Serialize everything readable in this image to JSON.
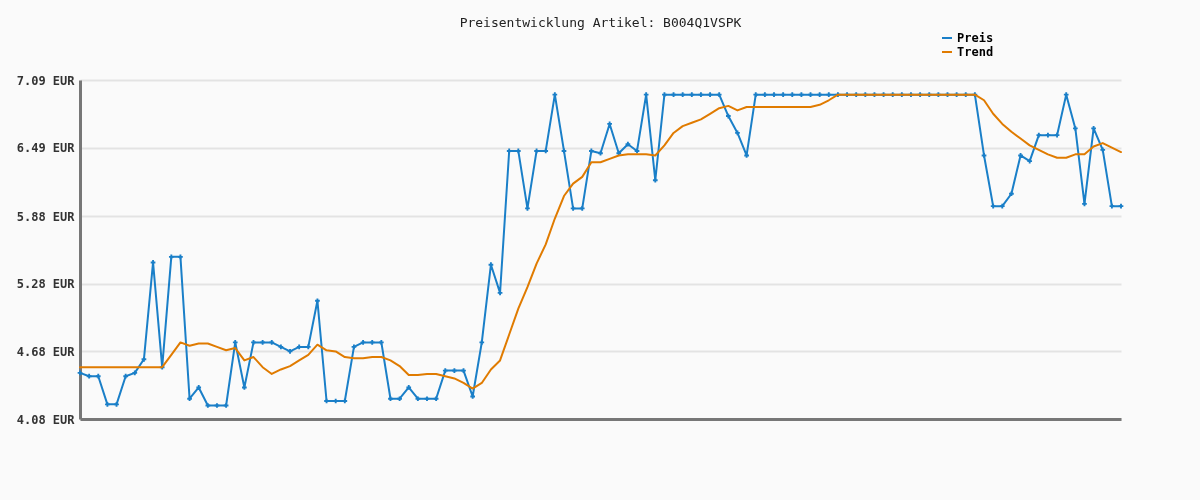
{
  "chart_data": {
    "type": "line",
    "title": "Preisentwicklung Artikel: B004Q1VSPK",
    "categories": [
      null,
      null,
      null,
      null,
      null,
      null,
      null,
      null,
      null,
      null,
      null,
      null,
      null,
      null,
      null,
      null,
      null,
      null,
      null,
      null,
      null,
      null,
      null,
      null,
      null,
      null,
      null,
      null,
      null,
      null,
      null,
      null,
      null,
      null,
      null,
      null,
      null,
      null,
      null,
      null,
      null,
      null,
      null,
      null,
      null,
      null,
      null,
      null,
      null,
      null,
      null,
      null,
      null,
      null,
      null,
      null,
      null,
      null,
      null,
      null,
      null,
      null,
      null,
      null,
      null,
      null,
      null,
      null,
      null,
      null,
      null,
      null,
      null,
      null,
      null,
      null,
      null,
      null,
      null,
      null,
      null,
      null,
      null,
      null,
      null,
      null,
      null,
      null,
      null,
      null,
      null,
      null,
      null,
      null,
      null,
      null,
      null,
      null,
      null,
      null,
      null,
      null,
      null,
      null,
      null,
      null,
      null,
      null,
      null,
      null,
      null,
      null,
      null,
      null,
      null
    ],
    "series": [
      {
        "name": "Preis",
        "color": "#1a7fc8",
        "marker": "cross",
        "values": [
          4.49,
          4.46,
          4.46,
          4.21,
          4.21,
          4.46,
          4.49,
          4.61,
          5.47,
          4.54,
          5.52,
          5.52,
          4.26,
          4.36,
          4.2,
          4.2,
          4.2,
          4.76,
          4.36,
          4.76,
          4.76,
          4.76,
          4.72,
          4.68,
          4.72,
          4.72,
          5.13,
          4.24,
          4.24,
          4.24,
          4.72,
          4.76,
          4.76,
          4.76,
          4.26,
          4.26,
          4.36,
          4.26,
          4.26,
          4.26,
          4.51,
          4.51,
          4.51,
          4.28,
          4.76,
          5.45,
          5.2,
          6.46,
          6.46,
          5.95,
          6.46,
          6.46,
          6.96,
          6.46,
          5.95,
          5.95,
          6.46,
          6.44,
          6.7,
          6.44,
          6.52,
          6.46,
          6.96,
          6.2,
          6.96,
          6.96,
          6.96,
          6.96,
          6.96,
          6.96,
          6.96,
          6.77,
          6.62,
          6.42,
          6.96,
          6.96,
          6.96,
          6.96,
          6.96,
          6.96,
          6.96,
          6.96,
          6.96,
          6.96,
          6.96,
          6.96,
          6.96,
          6.96,
          6.96,
          6.96,
          6.96,
          6.96,
          6.96,
          6.96,
          6.96,
          6.96,
          6.96,
          6.96,
          6.96,
          6.42,
          5.97,
          5.97,
          6.08,
          6.42,
          6.37,
          6.6,
          6.6,
          6.6,
          6.96,
          6.66,
          5.99,
          6.66,
          6.47,
          5.97,
          5.97
        ]
      },
      {
        "name": "Trend",
        "color": "#e07b00",
        "marker": "none",
        "values": [
          4.54,
          4.54,
          4.54,
          4.54,
          4.54,
          4.54,
          4.54,
          4.54,
          4.54,
          4.54,
          4.65,
          4.76,
          4.73,
          4.75,
          4.75,
          4.72,
          4.69,
          4.71,
          4.6,
          4.63,
          4.54,
          4.48,
          4.52,
          4.55,
          4.6,
          4.65,
          4.74,
          4.69,
          4.68,
          4.63,
          4.62,
          4.62,
          4.63,
          4.63,
          4.6,
          4.55,
          4.47,
          4.47,
          4.48,
          4.48,
          4.46,
          4.44,
          4.4,
          4.35,
          4.4,
          4.52,
          4.6,
          4.83,
          5.06,
          5.25,
          5.46,
          5.63,
          5.86,
          6.06,
          6.17,
          6.23,
          6.36,
          6.36,
          6.39,
          6.42,
          6.43,
          6.43,
          6.43,
          6.42,
          6.51,
          6.62,
          6.68,
          6.71,
          6.74,
          6.79,
          6.84,
          6.86,
          6.82,
          6.85,
          6.85,
          6.85,
          6.85,
          6.85,
          6.85,
          6.85,
          6.85,
          6.87,
          6.91,
          6.96,
          6.96,
          6.96,
          6.96,
          6.96,
          6.96,
          6.96,
          6.96,
          6.96,
          6.96,
          6.96,
          6.96,
          6.96,
          6.96,
          6.96,
          6.96,
          6.91,
          6.79,
          6.7,
          6.63,
          6.57,
          6.51,
          6.47,
          6.43,
          6.4,
          6.4,
          6.43,
          6.43,
          6.5,
          6.53,
          6.49,
          6.45
        ]
      }
    ],
    "ylim": [
      4.08,
      7.09
    ],
    "yticks": [
      {
        "value": 4.08,
        "label": "4.08 EUR"
      },
      {
        "value": 4.68,
        "label": "4.68 EUR"
      },
      {
        "value": 5.28,
        "label": "5.28 EUR"
      },
      {
        "value": 5.88,
        "label": "5.88 EUR"
      },
      {
        "value": 6.49,
        "label": "6.49 EUR"
      },
      {
        "value": 7.09,
        "label": "7.09 EUR"
      }
    ],
    "grid": "y",
    "legend": "top right",
    "tick_labels": "y",
    "line_style": "solid"
  }
}
